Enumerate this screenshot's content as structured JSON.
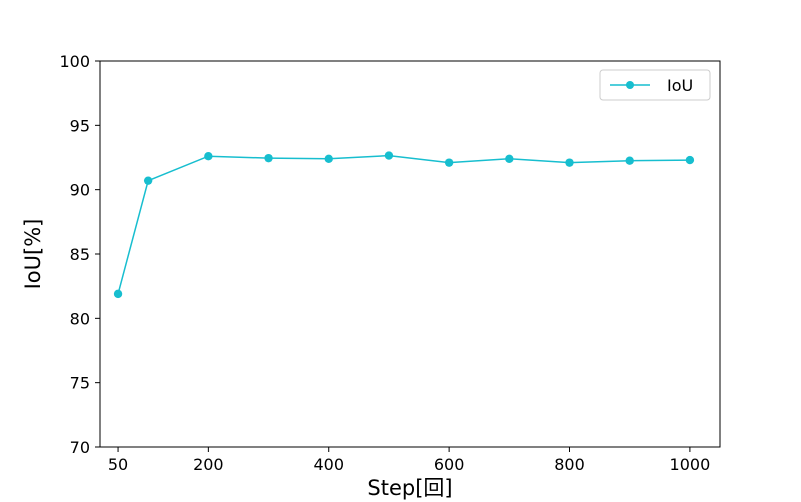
{
  "chart_data": {
    "type": "line",
    "xlabel": "Step[回]",
    "ylabel": "IoU[%]",
    "x": [
      50,
      100,
      200,
      300,
      400,
      500,
      600,
      700,
      800,
      900,
      1000
    ],
    "x_ticks": [
      50,
      200,
      400,
      600,
      800,
      1000
    ],
    "x_tick_labels": [
      "50",
      "200",
      "400",
      "600",
      "800",
      "1000"
    ],
    "xlim": [
      20,
      1050
    ],
    "ylim": [
      70,
      100
    ],
    "y_ticks": [
      70,
      75,
      80,
      85,
      90,
      95,
      100
    ],
    "y_tick_labels": [
      "70",
      "75",
      "80",
      "85",
      "90",
      "95",
      "100"
    ],
    "series": [
      {
        "name": "IoU",
        "color": "#17becf",
        "marker": "circle",
        "values": [
          81.9,
          90.7,
          92.6,
          92.45,
          92.4,
          92.65,
          92.1,
          92.4,
          92.1,
          92.25,
          92.3
        ]
      }
    ],
    "legend": {
      "position": "top-right"
    },
    "grid": false
  }
}
